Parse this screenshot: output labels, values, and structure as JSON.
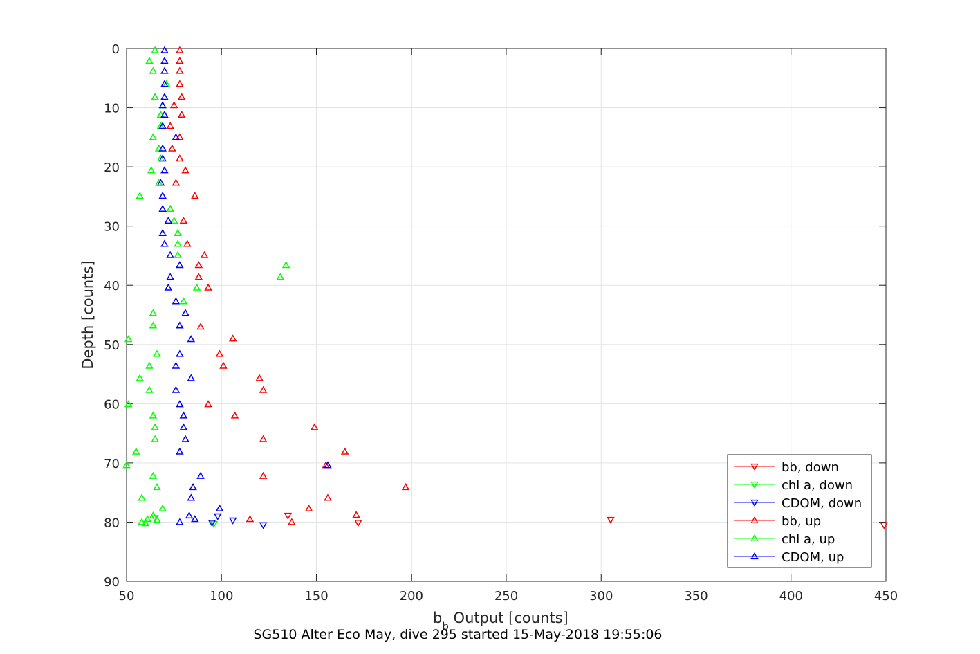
{
  "caption": "SG510 Alter Eco May, dive 295 started 15-May-2018 19:55:06",
  "chart_data": {
    "type": "scatter",
    "title": "",
    "xlabel_main": "b",
    "xlabel_sub": "b",
    "xlabel_rest": " Output [counts]",
    "ylabel": "Depth [counts]",
    "xlim": [
      50,
      450
    ],
    "ylim": [
      0,
      90
    ],
    "y_reversed": true,
    "grid": true,
    "legend_position": "lower-right",
    "xticks": [
      50,
      100,
      150,
      200,
      250,
      300,
      350,
      400,
      450
    ],
    "yticks": [
      0,
      10,
      20,
      30,
      40,
      50,
      60,
      70,
      80,
      90
    ],
    "series": [
      {
        "name": "bb, down",
        "color": "#ff0000",
        "marker": "triangle-down",
        "points": [
          [
            135,
            78.9
          ],
          [
            172,
            80.1
          ],
          [
            305,
            79.6
          ],
          [
            449,
            80.5
          ]
        ]
      },
      {
        "name": "chl a, down",
        "color": "#00ff00",
        "marker": "triangle-down",
        "points": [
          [
            65,
            79.3
          ],
          [
            96,
            80.3
          ]
        ]
      },
      {
        "name": "CDOM, down",
        "color": "#0000ff",
        "marker": "triangle-down",
        "points": [
          [
            95,
            80.1
          ],
          [
            98,
            79.0
          ],
          [
            106,
            79.7
          ],
          [
            122,
            80.5
          ]
        ]
      },
      {
        "name": "bb, up",
        "color": "#ff0000",
        "marker": "triangle-up",
        "points": [
          [
            78,
            0.3
          ],
          [
            78,
            2.1
          ],
          [
            78,
            3.8
          ],
          [
            78,
            6.0
          ],
          [
            79,
            8.2
          ],
          [
            75,
            9.6
          ],
          [
            79,
            11.2
          ],
          [
            73,
            13.1
          ],
          [
            78,
            15.0
          ],
          [
            74,
            16.9
          ],
          [
            78,
            18.6
          ],
          [
            81,
            20.6
          ],
          [
            76,
            22.7
          ],
          [
            86,
            24.9
          ],
          [
            73,
            27.1
          ],
          [
            80,
            29.1
          ],
          [
            82,
            33.0
          ],
          [
            91,
            34.9
          ],
          [
            88,
            36.6
          ],
          [
            88,
            38.6
          ],
          [
            93,
            40.4
          ],
          [
            89,
            47.0
          ],
          [
            106,
            49.0
          ],
          [
            99,
            51.6
          ],
          [
            101,
            53.6
          ],
          [
            120,
            55.7
          ],
          [
            122,
            57.7
          ],
          [
            93,
            60.1
          ],
          [
            107,
            62.0
          ],
          [
            149,
            64.0
          ],
          [
            122,
            66.0
          ],
          [
            165,
            68.1
          ],
          [
            155,
            70.4
          ],
          [
            122,
            72.2
          ],
          [
            197,
            74.1
          ],
          [
            156,
            75.9
          ],
          [
            146,
            77.7
          ],
          [
            171,
            78.8
          ],
          [
            137,
            80.0
          ],
          [
            115,
            79.5
          ]
        ]
      },
      {
        "name": "chl a, up",
        "color": "#00ff00",
        "marker": "triangle-up",
        "points": [
          [
            65,
            0.3
          ],
          [
            62,
            2.1
          ],
          [
            64,
            3.8
          ],
          [
            71,
            6.0
          ],
          [
            65,
            8.2
          ],
          [
            69,
            9.6
          ],
          [
            68,
            11.2
          ],
          [
            68,
            13.1
          ],
          [
            64,
            15.0
          ],
          [
            67,
            16.9
          ],
          [
            68,
            18.6
          ],
          [
            63,
            20.6
          ],
          [
            67,
            22.7
          ],
          [
            57,
            24.9
          ],
          [
            73,
            27.1
          ],
          [
            75,
            29.1
          ],
          [
            77,
            31.2
          ],
          [
            77,
            33.0
          ],
          [
            77,
            34.9
          ],
          [
            134,
            36.6
          ],
          [
            131,
            38.6
          ],
          [
            87,
            40.4
          ],
          [
            80,
            42.7
          ],
          [
            64,
            44.7
          ],
          [
            64,
            46.8
          ],
          [
            51,
            49.1
          ],
          [
            66,
            51.6
          ],
          [
            62,
            53.6
          ],
          [
            57,
            55.7
          ],
          [
            62,
            57.7
          ],
          [
            51,
            60.1
          ],
          [
            64,
            62.0
          ],
          [
            65,
            64.0
          ],
          [
            65,
            66.0
          ],
          [
            55,
            68.1
          ],
          [
            50,
            70.4
          ],
          [
            64,
            72.2
          ],
          [
            66,
            74.1
          ],
          [
            58,
            75.9
          ],
          [
            69,
            77.7
          ],
          [
            64,
            78.9
          ],
          [
            66,
            79.6
          ],
          [
            61,
            79.5
          ],
          [
            58,
            80.0
          ],
          [
            60,
            80.2
          ]
        ]
      },
      {
        "name": "CDOM, up",
        "color": "#0000ff",
        "marker": "triangle-up",
        "points": [
          [
            70,
            0.3
          ],
          [
            70,
            2.1
          ],
          [
            70,
            3.8
          ],
          [
            70,
            6.0
          ],
          [
            70,
            8.2
          ],
          [
            69,
            9.6
          ],
          [
            70,
            11.2
          ],
          [
            69,
            13.1
          ],
          [
            76,
            15.0
          ],
          [
            69,
            16.9
          ],
          [
            69,
            18.6
          ],
          [
            70,
            20.6
          ],
          [
            68,
            22.7
          ],
          [
            69,
            24.9
          ],
          [
            69,
            27.1
          ],
          [
            72,
            29.1
          ],
          [
            69,
            31.2
          ],
          [
            70,
            33.0
          ],
          [
            73,
            34.9
          ],
          [
            78,
            36.6
          ],
          [
            73,
            38.6
          ],
          [
            72,
            40.4
          ],
          [
            76,
            42.7
          ],
          [
            81,
            44.7
          ],
          [
            78,
            46.8
          ],
          [
            84,
            49.1
          ],
          [
            78,
            51.6
          ],
          [
            76,
            53.6
          ],
          [
            84,
            55.7
          ],
          [
            76,
            57.7
          ],
          [
            78,
            60.1
          ],
          [
            80,
            62.0
          ],
          [
            80,
            64.0
          ],
          [
            81,
            66.0
          ],
          [
            78,
            68.1
          ],
          [
            156,
            70.4
          ],
          [
            89,
            72.2
          ],
          [
            85,
            74.1
          ],
          [
            84,
            75.9
          ],
          [
            99,
            77.7
          ],
          [
            83,
            78.9
          ],
          [
            86,
            79.5
          ],
          [
            78,
            80.0
          ]
        ]
      }
    ]
  }
}
